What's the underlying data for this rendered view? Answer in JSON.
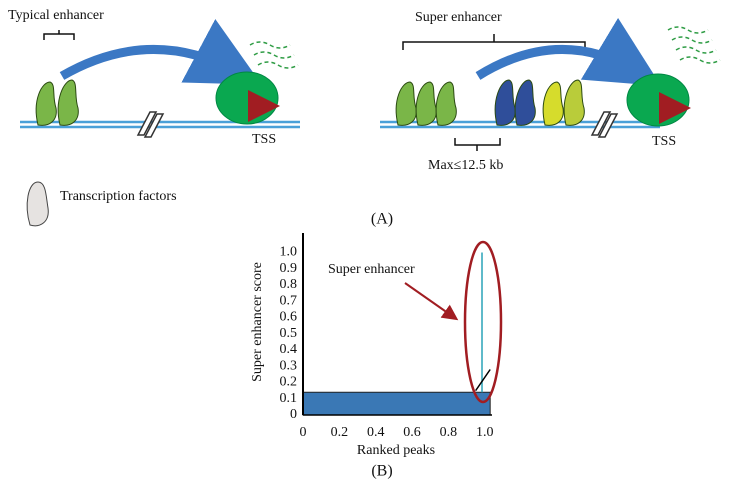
{
  "panel_a": {
    "typical_label": "Typical enhancer",
    "super_label": "Super enhancer",
    "tss_left": "TSS",
    "tss_right": "TSS",
    "max_distance": "Max≤12.5 kb",
    "legend_label": "Transcription factors",
    "caption": "(A)"
  },
  "chart_data": {
    "type": "line",
    "caption": "(B)",
    "annotation": "Super enhancer",
    "xlabel": "Ranked peaks",
    "ylabel": "Super enhancer score",
    "xlim": [
      0,
      1.04
    ],
    "ylim": [
      0,
      1.12
    ],
    "xticks": [
      0,
      0.2,
      0.4,
      0.6,
      0.8,
      {
        "value": 1,
        "label": "1.0"
      }
    ],
    "yticks": [
      0,
      0.1,
      0.2,
      0.3,
      0.4,
      0.5,
      0.6,
      0.7,
      0.8,
      0.9,
      {
        "value": 1,
        "label": "1.0"
      }
    ],
    "series": [
      {
        "kind": "area",
        "color": "#3a78b5",
        "x": [
          0,
          1.03
        ],
        "values": [
          0.14,
          0.14
        ]
      },
      {
        "color": "#2aa3b8",
        "x": [
          0.985,
          0.985
        ],
        "values": [
          0.14,
          1.0
        ]
      },
      {
        "color": "#000000",
        "x": [
          0.95,
          1.03
        ],
        "values": [
          0.15,
          0.28
        ]
      }
    ]
  }
}
